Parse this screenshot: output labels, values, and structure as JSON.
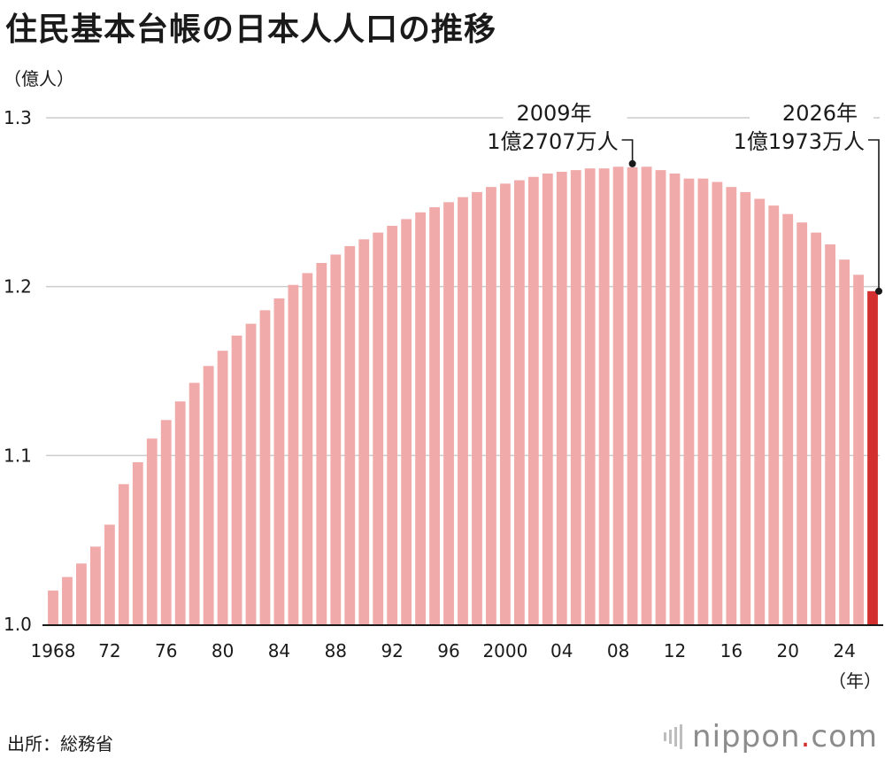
{
  "title": "住民基本台帳の日本人人口の推移",
  "source": "出所：総務省",
  "logo": {
    "name": "nippon",
    "dot": ".",
    "tld": "com"
  },
  "chart_data": {
    "type": "bar",
    "title": "住民基本台帳の日本人人口の推移",
    "ylabel": "（億人）",
    "xlabel": "（年）",
    "ylim": [
      1.0,
      1.3
    ],
    "yticks": [
      {
        "value": 1.0,
        "label": "1.0"
      },
      {
        "value": 1.1,
        "label": "1.1"
      },
      {
        "value": 1.2,
        "label": "1.2"
      },
      {
        "value": 1.3,
        "label": "1.3"
      }
    ],
    "grid": true,
    "x": [
      1968,
      1969,
      1970,
      1971,
      1972,
      1973,
      1974,
      1975,
      1976,
      1977,
      1978,
      1979,
      1980,
      1981,
      1982,
      1983,
      1984,
      1985,
      1986,
      1987,
      1988,
      1989,
      1990,
      1991,
      1992,
      1993,
      1994,
      1995,
      1996,
      1997,
      1998,
      1999,
      2000,
      2001,
      2002,
      2003,
      2004,
      2005,
      2006,
      2007,
      2008,
      2009,
      2010,
      2011,
      2012,
      2013,
      2014,
      2015,
      2016,
      2017,
      2018,
      2019,
      2020,
      2021,
      2022,
      2023,
      2024,
      2025,
      2026
    ],
    "values": [
      1.02,
      1.028,
      1.036,
      1.046,
      1.059,
      1.083,
      1.096,
      1.11,
      1.121,
      1.132,
      1.143,
      1.153,
      1.162,
      1.171,
      1.178,
      1.186,
      1.193,
      1.201,
      1.208,
      1.214,
      1.219,
      1.224,
      1.228,
      1.232,
      1.236,
      1.24,
      1.244,
      1.247,
      1.25,
      1.253,
      1.256,
      1.259,
      1.261,
      1.263,
      1.265,
      1.267,
      1.268,
      1.269,
      1.27,
      1.27,
      1.271,
      1.2707,
      1.271,
      1.269,
      1.267,
      1.264,
      1.264,
      1.262,
      1.259,
      1.256,
      1.252,
      1.248,
      1.243,
      1.238,
      1.232,
      1.225,
      1.216,
      1.207,
      1.1973
    ],
    "xtick_labels": [
      {
        "x": 1968,
        "label": "1968"
      },
      {
        "x": 1972,
        "label": "72"
      },
      {
        "x": 1976,
        "label": "76"
      },
      {
        "x": 1980,
        "label": "80"
      },
      {
        "x": 1984,
        "label": "84"
      },
      {
        "x": 1988,
        "label": "88"
      },
      {
        "x": 1992,
        "label": "92"
      },
      {
        "x": 1996,
        "label": "96"
      },
      {
        "x": 2000,
        "label": "2000"
      },
      {
        "x": 2004,
        "label": "04"
      },
      {
        "x": 2008,
        "label": "08"
      },
      {
        "x": 2012,
        "label": "12"
      },
      {
        "x": 2016,
        "label": "16"
      },
      {
        "x": 2020,
        "label": "20"
      },
      {
        "x": 2024,
        "label": "24"
      }
    ],
    "highlight_year": 2026,
    "colors": {
      "bar": "#f0aaaa",
      "highlight": "#d32f2f",
      "grid": "#cccccc",
      "axis": "#1a1a1a"
    },
    "annotations": [
      {
        "x": 2009,
        "value": 1.2707,
        "line1": "2009年",
        "line2": "1億2707万人"
      },
      {
        "x": 2026,
        "value": 1.1973,
        "line1": "2026年",
        "line2": "1億1973万人"
      }
    ]
  }
}
